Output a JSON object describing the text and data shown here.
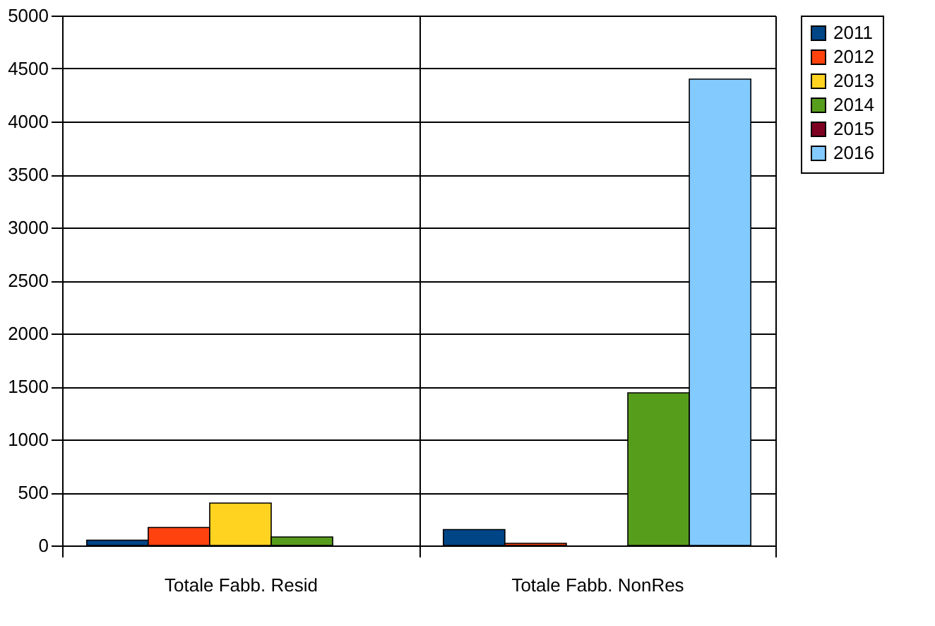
{
  "chart_data": {
    "type": "bar",
    "categories": [
      "Totale Fabb. Resid",
      "Totale Fabb. NonRes"
    ],
    "series": [
      {
        "name": "2011",
        "color": "#004586",
        "values": [
          50,
          150
        ]
      },
      {
        "name": "2012",
        "color": "#ff420e",
        "values": [
          170,
          20
        ]
      },
      {
        "name": "2013",
        "color": "#ffd320",
        "values": [
          400,
          null
        ]
      },
      {
        "name": "2014",
        "color": "#579d1c",
        "values": [
          80,
          1440
        ]
      },
      {
        "name": "2015",
        "color": "#7e0021",
        "values": [
          null,
          null
        ]
      },
      {
        "name": "2016",
        "color": "#83caff",
        "values": [
          null,
          4400
        ]
      }
    ],
    "ylim": [
      0,
      5000
    ],
    "yticks": [
      0,
      500,
      1000,
      1500,
      2000,
      2500,
      3000,
      3500,
      4000,
      4500,
      5000
    ],
    "grid": true,
    "legend": "right"
  }
}
